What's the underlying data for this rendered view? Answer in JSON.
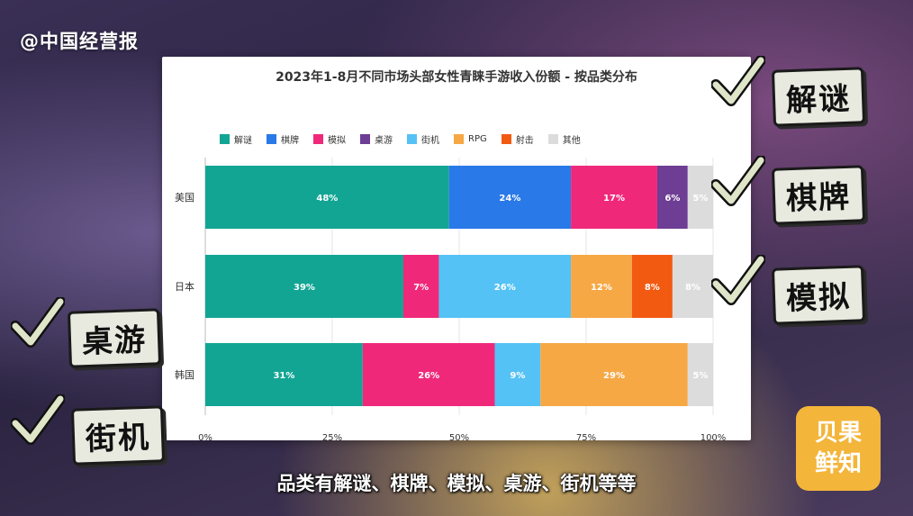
{
  "watermark": "@中国经营报",
  "chart_data": {
    "type": "bar",
    "orientation": "horizontal-stacked",
    "title": "2023年1-8月不同市场头部女性青睐手游收入份额 - 按品类分布",
    "categories": [
      "美国",
      "日本",
      "韩国"
    ],
    "xlim": [
      0,
      100
    ],
    "x_ticks": [
      "0%",
      "25%",
      "50%",
      "75%",
      "100%"
    ],
    "legend_placement": "top",
    "grid": true,
    "series": [
      {
        "name": "解谜",
        "color": "#12a594",
        "values": [
          48,
          39,
          31
        ]
      },
      {
        "name": "棋牌",
        "color": "#2979e8",
        "values": [
          24,
          0,
          0
        ]
      },
      {
        "name": "模拟",
        "color": "#f0287a",
        "values": [
          17,
          7,
          26
        ]
      },
      {
        "name": "桌游",
        "color": "#6e3d94",
        "values": [
          6,
          0,
          0
        ]
      },
      {
        "name": "街机",
        "color": "#55c2f5",
        "values": [
          0,
          26,
          9
        ]
      },
      {
        "name": "RPG",
        "color": "#f6a845",
        "values": [
          0,
          12,
          29
        ]
      },
      {
        "name": "射击",
        "color": "#f25a12",
        "values": [
          0,
          8,
          0
        ]
      },
      {
        "name": "其他",
        "color": "#dcdcdc",
        "values": [
          5,
          8,
          5
        ]
      }
    ],
    "data_labels": [
      [
        "48%",
        "24%",
        "17%",
        "6%",
        "5%"
      ],
      [
        "39%",
        "7%",
        "26%",
        "12%",
        "8%",
        "8%"
      ],
      [
        "31%",
        "26%",
        "9%",
        "29%",
        "5%"
      ]
    ]
  },
  "tags": [
    "解谜",
    "棋牌",
    "模拟",
    "桌游",
    "街机"
  ],
  "subtitle": "品类有解谜、棋牌、模拟、桌游、街机等等",
  "badge": [
    "贝果",
    "鲜知"
  ]
}
